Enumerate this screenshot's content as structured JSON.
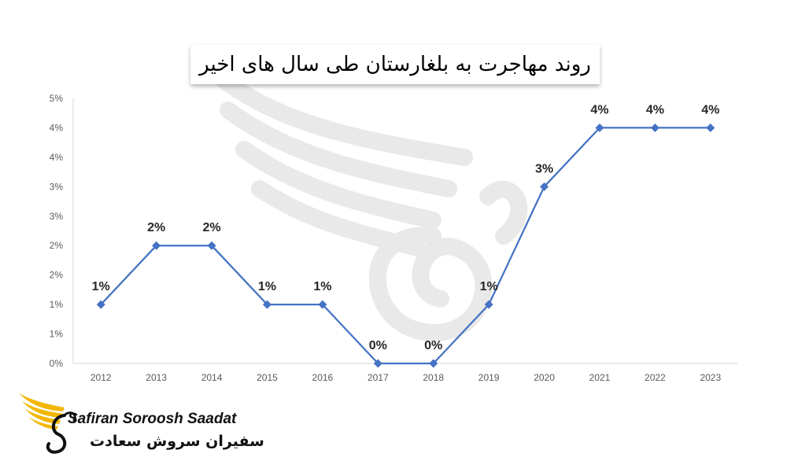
{
  "chart_data": {
    "type": "line",
    "title": "روند مهاجرت به بلغارستان طی سال های اخیر",
    "categories": [
      "2012",
      "2013",
      "2014",
      "2015",
      "2016",
      "2017",
      "2018",
      "2019",
      "2020",
      "2021",
      "2022",
      "2023"
    ],
    "values": [
      0.01,
      0.02,
      0.02,
      0.01,
      0.01,
      0.0,
      0.0,
      0.01,
      0.03,
      0.04,
      0.04,
      0.04
    ],
    "data_labels": [
      "1%",
      "2%",
      "2%",
      "1%",
      "1%",
      "0%",
      "0%",
      "1%",
      "3%",
      "4%",
      "4%",
      "4%"
    ],
    "y_ticks": [
      {
        "value": 0.0,
        "label": "0%"
      },
      {
        "value": 0.005,
        "label": "1%"
      },
      {
        "value": 0.01,
        "label": "1%"
      },
      {
        "value": 0.015,
        "label": "2%"
      },
      {
        "value": 0.02,
        "label": "2%"
      },
      {
        "value": 0.025,
        "label": "3%"
      },
      {
        "value": 0.03,
        "label": "3%"
      },
      {
        "value": 0.035,
        "label": "4%"
      },
      {
        "value": 0.04,
        "label": "4%"
      },
      {
        "value": 0.045,
        "label": "5%"
      }
    ],
    "ylim": [
      0,
      0.045
    ],
    "xlabel": "",
    "ylabel": "",
    "grid": false,
    "legend": "none",
    "line_color": "#4472C4",
    "marker": "diamond"
  },
  "branding": {
    "name_en": "Safiran Soroosh Saadat",
    "name_fa": "سفیران سروش سعادت",
    "emblem_color": "#F2B705"
  }
}
